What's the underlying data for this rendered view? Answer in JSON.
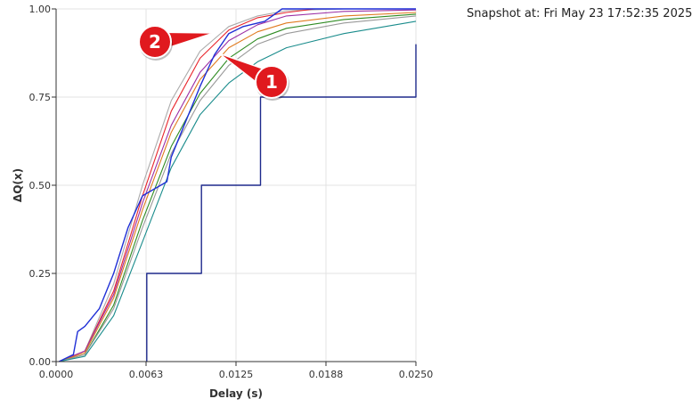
{
  "snapshot_text": "Snapshot at: Fri May 23 17:52:35 2025",
  "chart_data": {
    "type": "line",
    "xlabel": "Delay (s)",
    "ylabel": "ΔQ(x)",
    "xlim": [
      0,
      0.025
    ],
    "ylim": [
      0,
      1
    ],
    "x_ticks": [
      "0.0000",
      "0.0063",
      "0.0125",
      "0.0188",
      "0.0250"
    ],
    "y_ticks": [
      "0.00",
      "0.25",
      "0.50",
      "0.75",
      "1.00"
    ],
    "grid": true,
    "series": [
      {
        "color": "#aaaaaa",
        "points": [
          [
            0.0002,
            0
          ],
          [
            0.002,
            0.03
          ],
          [
            0.004,
            0.22
          ],
          [
            0.006,
            0.5
          ],
          [
            0.008,
            0.74
          ],
          [
            0.01,
            0.88
          ],
          [
            0.012,
            0.95
          ],
          [
            0.014,
            0.98
          ],
          [
            0.016,
            0.995
          ],
          [
            0.02,
            1
          ],
          [
            0.025,
            1
          ]
        ]
      },
      {
        "color": "#e8252b",
        "points": [
          [
            0.0002,
            0
          ],
          [
            0.002,
            0.03
          ],
          [
            0.004,
            0.2
          ],
          [
            0.006,
            0.47
          ],
          [
            0.008,
            0.71
          ],
          [
            0.01,
            0.86
          ],
          [
            0.012,
            0.94
          ],
          [
            0.014,
            0.975
          ],
          [
            0.016,
            0.99
          ],
          [
            0.018,
            1
          ],
          [
            0.025,
            1
          ]
        ]
      },
      {
        "color": "#9b2fa5",
        "points": [
          [
            0.0002,
            0
          ],
          [
            0.002,
            0.03
          ],
          [
            0.004,
            0.19
          ],
          [
            0.006,
            0.45
          ],
          [
            0.008,
            0.67
          ],
          [
            0.01,
            0.82
          ],
          [
            0.012,
            0.91
          ],
          [
            0.014,
            0.955
          ],
          [
            0.016,
            0.98
          ],
          [
            0.02,
            0.993
          ],
          [
            0.025,
            0.997
          ]
        ]
      },
      {
        "color": "#e07a1f",
        "points": [
          [
            0.0002,
            0
          ],
          [
            0.002,
            0.025
          ],
          [
            0.004,
            0.18
          ],
          [
            0.006,
            0.43
          ],
          [
            0.008,
            0.65
          ],
          [
            0.01,
            0.8
          ],
          [
            0.012,
            0.89
          ],
          [
            0.014,
            0.935
          ],
          [
            0.016,
            0.96
          ],
          [
            0.02,
            0.98
          ],
          [
            0.025,
            0.99
          ]
        ]
      },
      {
        "color": "#2e8b22",
        "points": [
          [
            0.0002,
            0
          ],
          [
            0.002,
            0.02
          ],
          [
            0.004,
            0.16
          ],
          [
            0.006,
            0.4
          ],
          [
            0.008,
            0.61
          ],
          [
            0.01,
            0.76
          ],
          [
            0.012,
            0.86
          ],
          [
            0.014,
            0.915
          ],
          [
            0.016,
            0.945
          ],
          [
            0.02,
            0.97
          ],
          [
            0.025,
            0.985
          ]
        ]
      },
      {
        "color": "#999999",
        "points": [
          [
            0.0002,
            0
          ],
          [
            0.002,
            0.02
          ],
          [
            0.004,
            0.15
          ],
          [
            0.006,
            0.38
          ],
          [
            0.008,
            0.59
          ],
          [
            0.01,
            0.74
          ],
          [
            0.012,
            0.84
          ],
          [
            0.014,
            0.9
          ],
          [
            0.016,
            0.93
          ],
          [
            0.02,
            0.96
          ],
          [
            0.025,
            0.98
          ]
        ]
      },
      {
        "color": "#1a8c8c",
        "points": [
          [
            0.0002,
            0
          ],
          [
            0.002,
            0.015
          ],
          [
            0.004,
            0.13
          ],
          [
            0.006,
            0.34
          ],
          [
            0.008,
            0.55
          ],
          [
            0.01,
            0.7
          ],
          [
            0.012,
            0.79
          ],
          [
            0.014,
            0.85
          ],
          [
            0.016,
            0.89
          ],
          [
            0.02,
            0.93
          ],
          [
            0.025,
            0.965
          ]
        ]
      },
      {
        "color": "#1f2fd6",
        "points": [
          [
            0.0002,
            0
          ],
          [
            0.0012,
            0.02
          ],
          [
            0.0015,
            0.085
          ],
          [
            0.002,
            0.1
          ],
          [
            0.003,
            0.15
          ],
          [
            0.004,
            0.25
          ],
          [
            0.005,
            0.38
          ],
          [
            0.006,
            0.47
          ],
          [
            0.0077,
            0.51
          ],
          [
            0.008,
            0.58
          ],
          [
            0.009,
            0.68
          ],
          [
            0.01,
            0.78
          ],
          [
            0.011,
            0.87
          ],
          [
            0.012,
            0.93
          ],
          [
            0.013,
            0.95
          ],
          [
            0.0145,
            0.965
          ],
          [
            0.0157,
            1
          ],
          [
            0.025,
            1
          ]
        ]
      },
      {
        "color": "#1e2a8c",
        "step": true,
        "points": [
          [
            0.0063,
            0
          ],
          [
            0.0063,
            0.25
          ],
          [
            0.0101,
            0.25
          ],
          [
            0.0101,
            0.5
          ],
          [
            0.0142,
            0.5
          ],
          [
            0.0142,
            0.75
          ],
          [
            0.018,
            0.75
          ],
          [
            0.018,
            0.75
          ],
          [
            0.025,
            0.75
          ],
          [
            0.025,
            0.9
          ]
        ]
      }
    ],
    "annotations": [
      {
        "label": "1"
      },
      {
        "label": "2"
      }
    ]
  }
}
